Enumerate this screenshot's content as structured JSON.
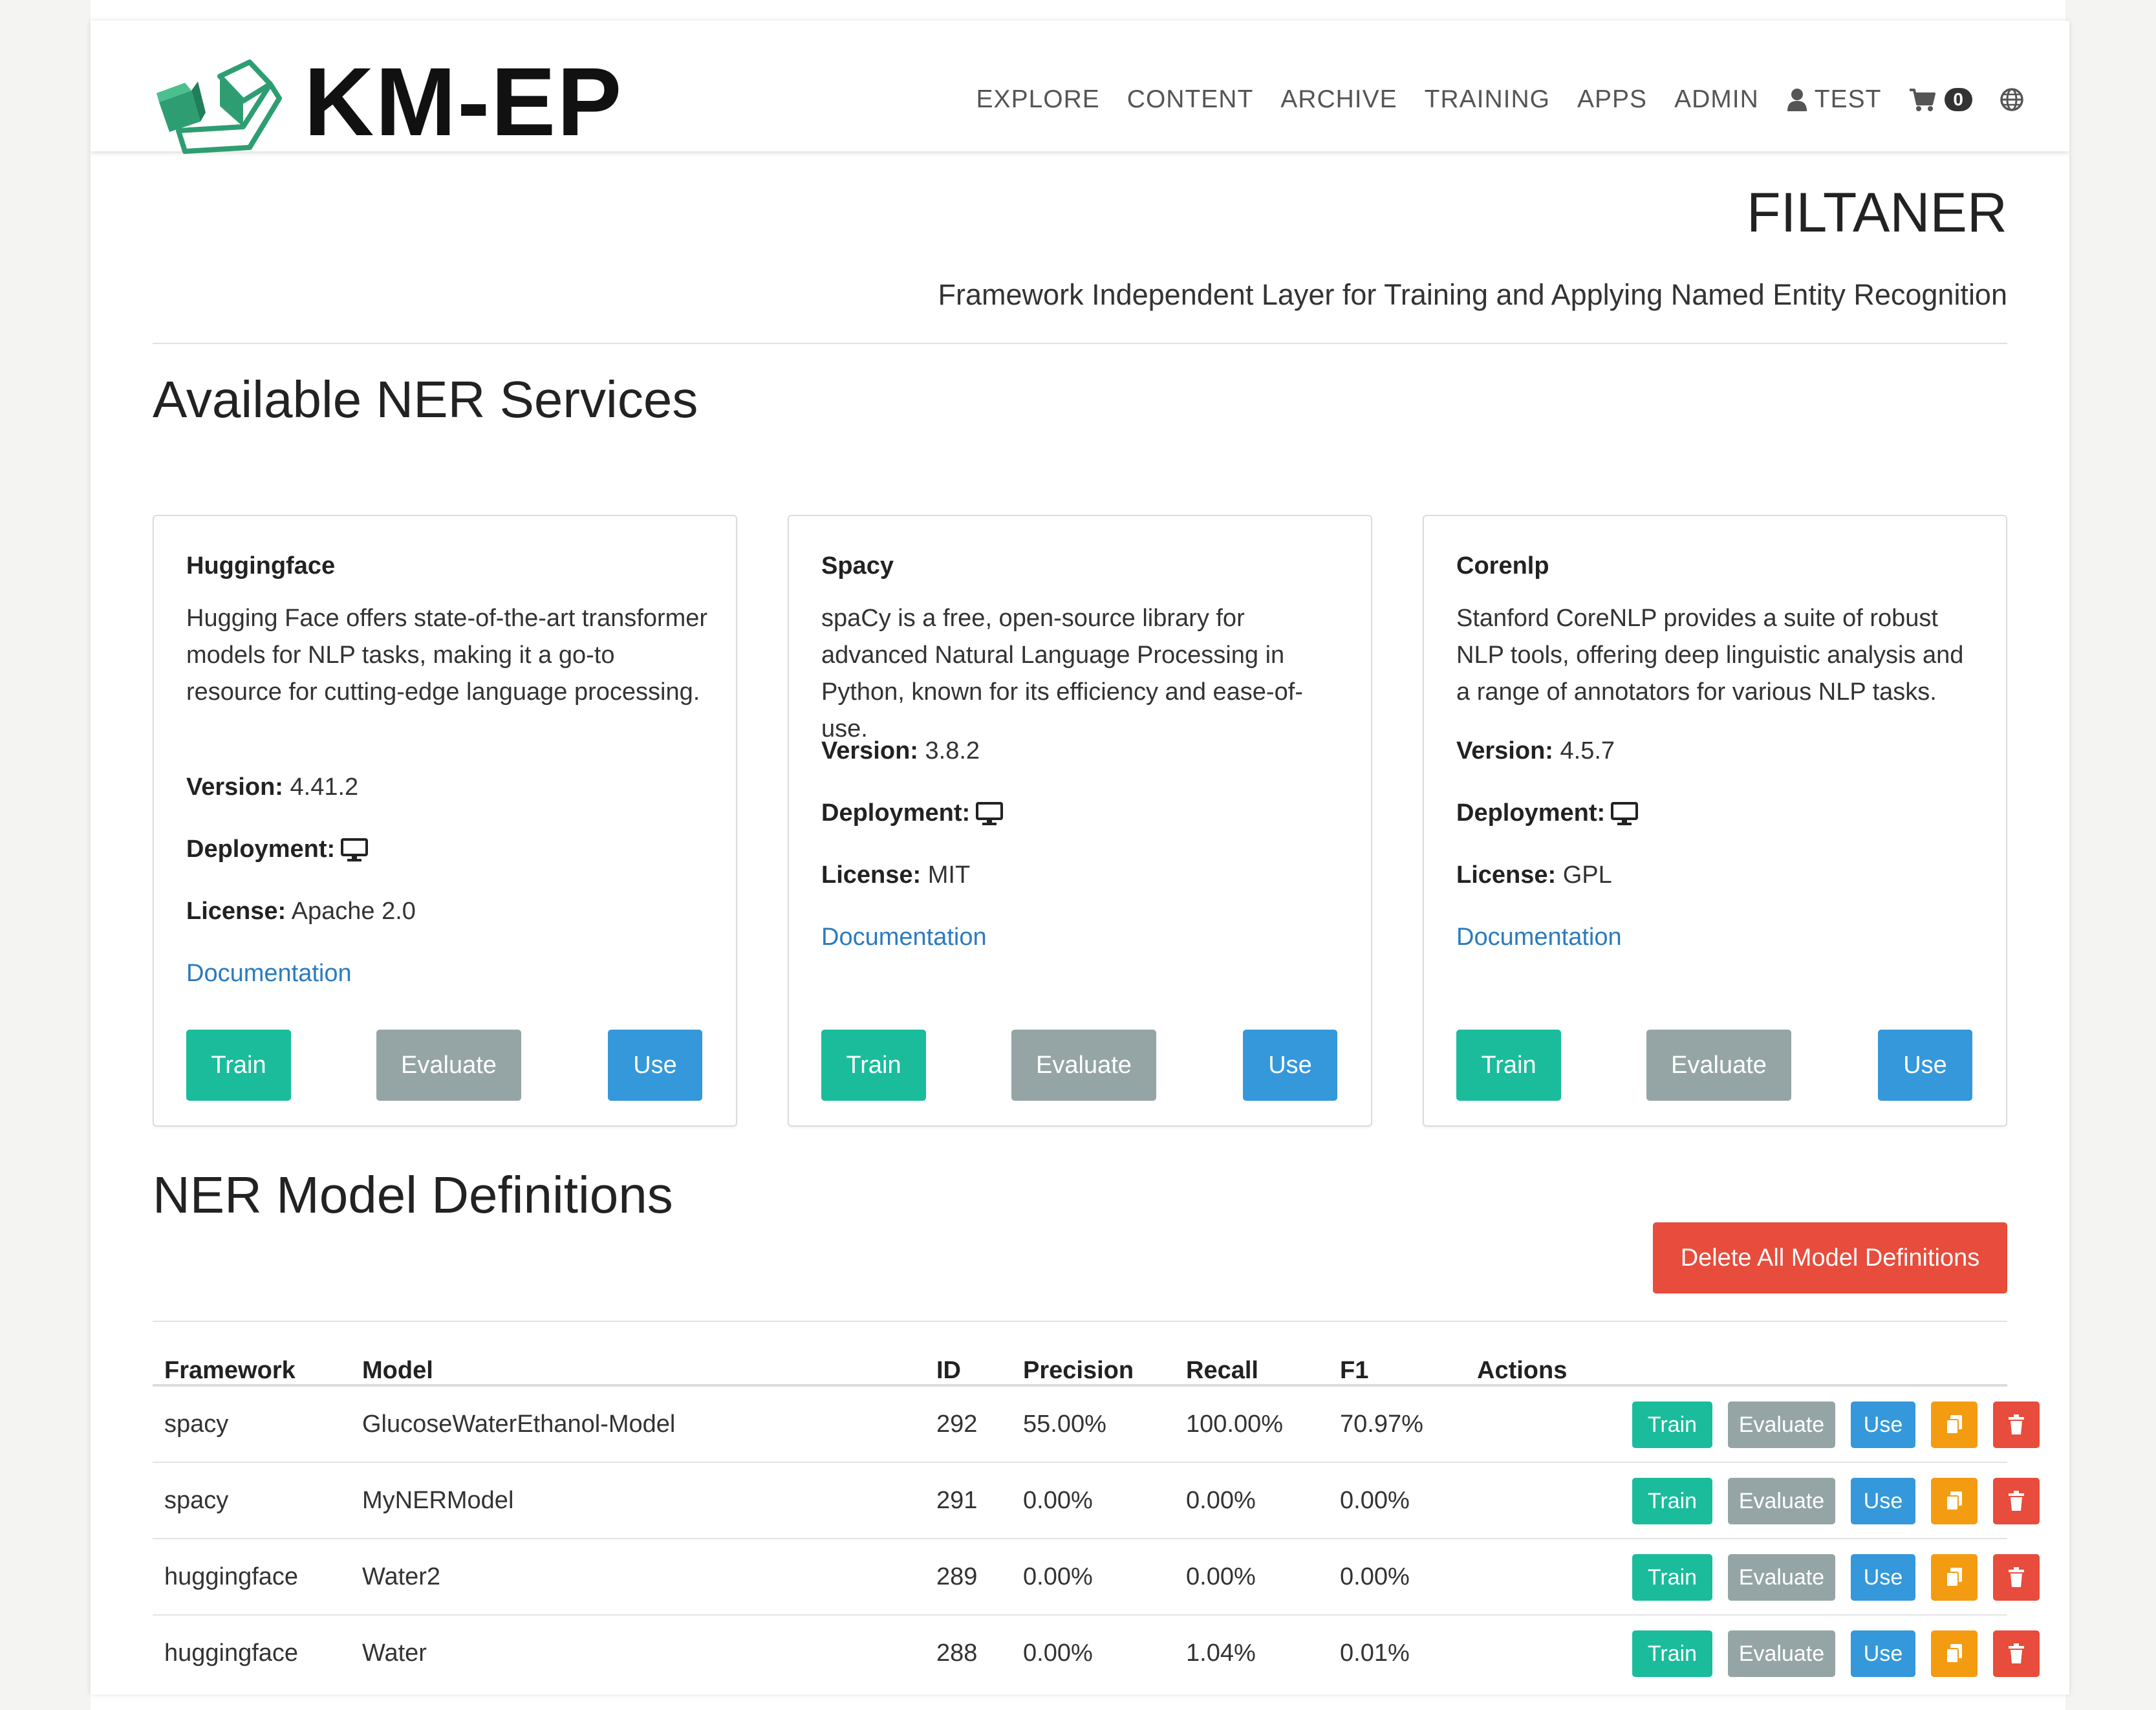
{
  "brand": {
    "name": "KM-EP"
  },
  "nav": {
    "items": [
      "EXPLORE",
      "CONTENT",
      "ARCHIVE",
      "TRAINING",
      "APPS",
      "ADMIN"
    ],
    "user": "TEST",
    "cart_count": "0"
  },
  "header": {
    "title": "FILTANER",
    "subtitle": "Framework Independent Layer for Training and Applying Named Entity Recognition"
  },
  "services": {
    "heading": "Available NER Services",
    "version_label": "Version:",
    "deployment_label": "Deployment:",
    "license_label": "License:",
    "cards": [
      {
        "name": "Huggingface",
        "description": "Hugging Face offers state-of-the-art transformer models for NLP tasks, making it a go-to resource for cutting-edge language processing.",
        "version": "4.41.2",
        "license": "Apache 2.0",
        "doc_link": "Documentation",
        "train": "Train",
        "evaluate": "Evaluate",
        "use": "Use"
      },
      {
        "name": "Spacy",
        "description": "spaCy is a free, open-source library for advanced Natural Language Processing in Python, known for its efficiency and ease-of-use.",
        "version": "3.8.2",
        "license": "MIT",
        "doc_link": "Documentation",
        "train": "Train",
        "evaluate": "Evaluate",
        "use": "Use"
      },
      {
        "name": "Corenlp",
        "description": "Stanford CoreNLP provides a suite of robust NLP tools, offering deep linguistic analysis and a range of annotators for various NLP tasks.",
        "version": "4.5.7",
        "license": "GPL",
        "doc_link": "Documentation",
        "train": "Train",
        "evaluate": "Evaluate",
        "use": "Use"
      }
    ]
  },
  "models": {
    "heading": "NER Model Definitions",
    "delete_all": "Delete All Model Definitions",
    "columns": [
      "Framework",
      "Model",
      "ID",
      "Precision",
      "Recall",
      "F1",
      "Actions"
    ],
    "row_actions": {
      "train": "Train",
      "evaluate": "Evaluate",
      "use": "Use"
    },
    "rows": [
      {
        "framework": "spacy",
        "model": "GlucoseWaterEthanol-Model",
        "id": "292",
        "precision": "55.00%",
        "recall": "100.00%",
        "f1": "70.97%"
      },
      {
        "framework": "spacy",
        "model": "MyNERModel",
        "id": "291",
        "precision": "0.00%",
        "recall": "0.00%",
        "f1": "0.00%"
      },
      {
        "framework": "huggingface",
        "model": "Water2",
        "id": "289",
        "precision": "0.00%",
        "recall": "0.00%",
        "f1": "0.00%"
      },
      {
        "framework": "huggingface",
        "model": "Water",
        "id": "288",
        "precision": "0.00%",
        "recall": "1.04%",
        "f1": "0.01%"
      }
    ]
  },
  "colors": {
    "train": "#1abc9c",
    "evaluate": "#95a5a6",
    "use": "#3498db",
    "danger": "#e74c3c",
    "copy": "#f39c12",
    "link": "#2b7bbf"
  }
}
